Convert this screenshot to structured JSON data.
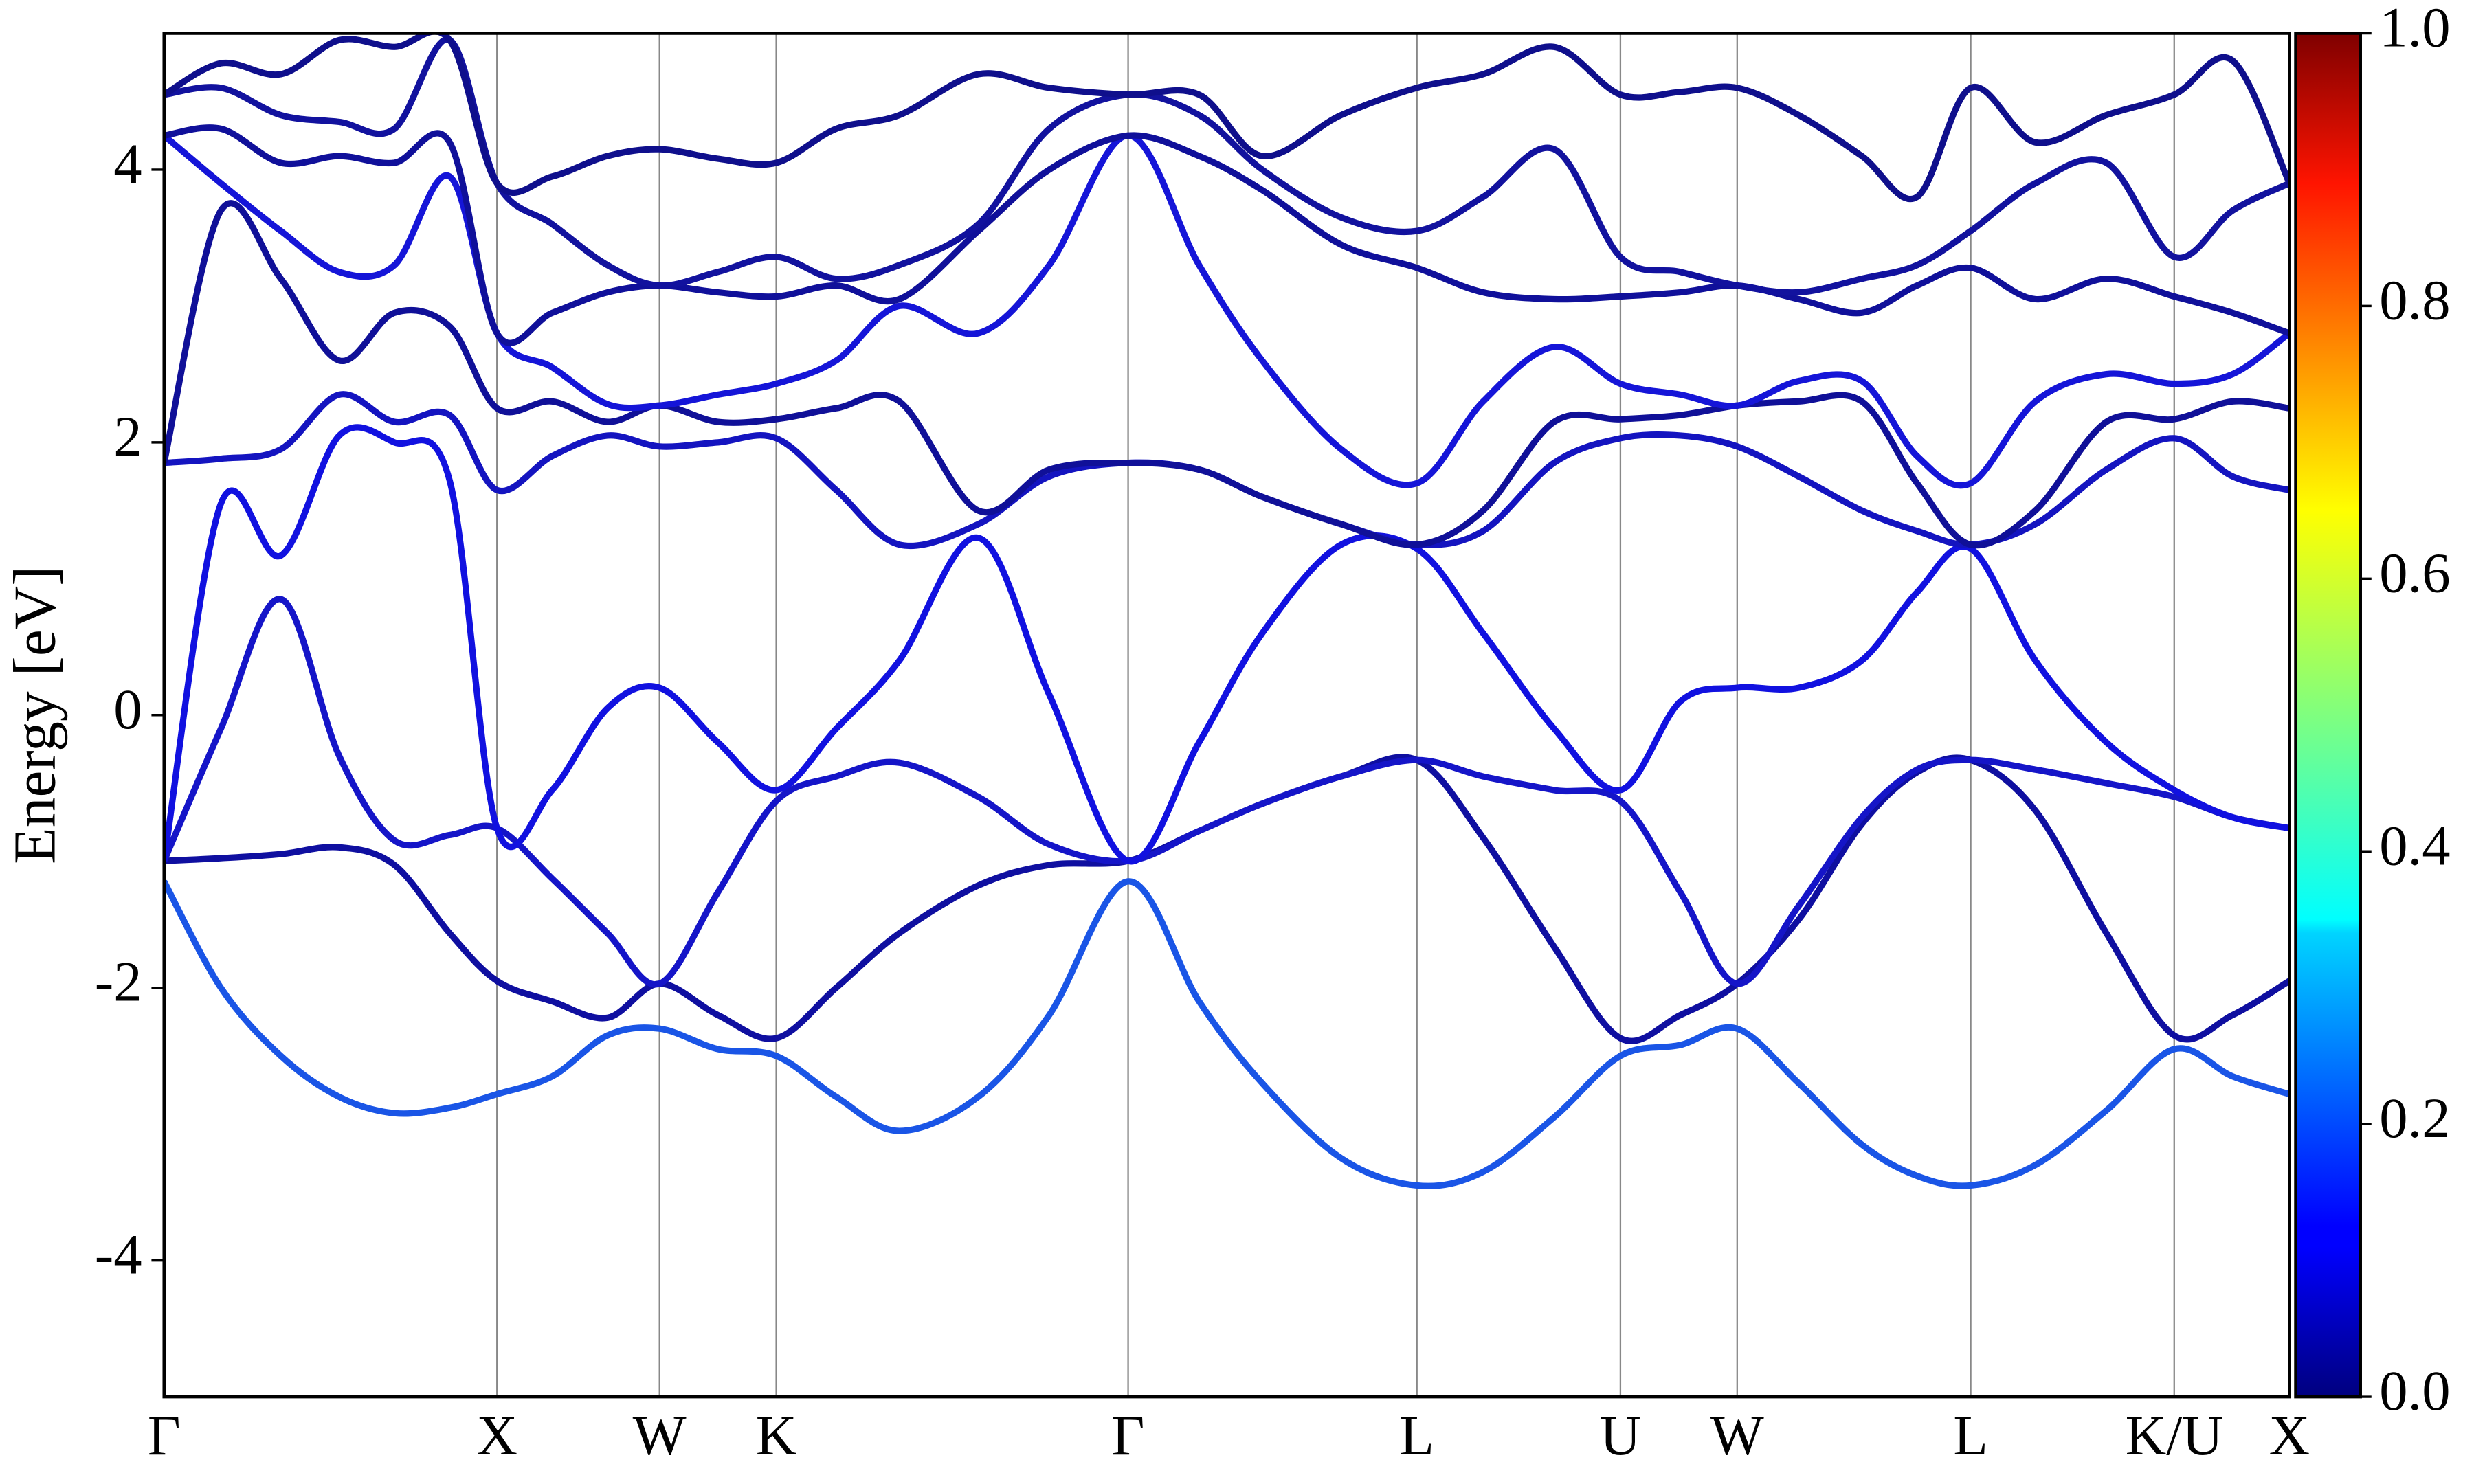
{
  "chart_data": {
    "type": "line",
    "ylabel": "Energy [eV]",
    "ylim": [
      -5,
      5
    ],
    "yticks": [
      -4,
      -2,
      0,
      2,
      4
    ],
    "xlim": [
      0,
      13.47
    ],
    "xticks": [
      {
        "value": 0,
        "label": "Γ"
      },
      {
        "value": 2.11,
        "label": "X"
      },
      {
        "value": 3.14,
        "label": "W"
      },
      {
        "value": 3.88,
        "label": "K"
      },
      {
        "value": 6.11,
        "label": "Γ"
      },
      {
        "value": 7.94,
        "label": "L"
      },
      {
        "value": 9.23,
        "label": "U"
      },
      {
        "value": 9.97,
        "label": "W"
      },
      {
        "value": 11.45,
        "label": "L"
      },
      {
        "value": 12.74,
        "label": "K/U"
      },
      {
        "value": 13.47,
        "label": "X"
      }
    ],
    "grid": "x",
    "x": [
      0,
      0.36,
      0.74,
      1.11,
      1.46,
      1.81,
      2.11,
      2.46,
      2.81,
      3.14,
      3.51,
      3.88,
      4.26,
      4.66,
      5.16,
      5.61,
      6.11,
      6.56,
      6.96,
      7.46,
      7.94,
      8.36,
      8.81,
      9.23,
      9.61,
      9.97,
      10.36,
      10.76,
      11.11,
      11.45,
      11.86,
      12.31,
      12.74,
      13.11,
      13.47
    ],
    "series": [
      {
        "color": "#1a55e6",
        "values": [
          -1.22,
          -2.0,
          -2.5,
          -2.8,
          -2.92,
          -2.88,
          -2.78,
          -2.65,
          -2.35,
          -2.3,
          -2.45,
          -2.5,
          -2.8,
          -3.05,
          -2.8,
          -2.2,
          -1.22,
          -2.1,
          -2.7,
          -3.25,
          -3.45,
          -3.35,
          -2.95,
          -2.5,
          -2.42,
          -2.3,
          -2.7,
          -3.15,
          -3.38,
          -3.45,
          -3.3,
          -2.9,
          -2.45,
          -2.65,
          -2.78
        ]
      },
      {
        "color": "#0f0fa0",
        "values": [
          -1.07,
          -1.05,
          -1.02,
          -0.97,
          -1.1,
          -1.6,
          -1.95,
          -2.1,
          -2.22,
          -1.97,
          -2.2,
          -2.37,
          -2.0,
          -1.6,
          -1.25,
          -1.1,
          -1.07,
          -0.85,
          -0.65,
          -0.45,
          -0.33,
          -0.9,
          -1.7,
          -2.37,
          -2.2,
          -1.97,
          -1.5,
          -0.8,
          -0.42,
          -0.33,
          -0.7,
          -1.6,
          -2.35,
          -2.2,
          -1.95
        ]
      },
      {
        "color": "#1515c8",
        "values": [
          -1.07,
          -0.1,
          0.85,
          -0.3,
          -0.92,
          -0.88,
          -0.83,
          -1.2,
          -1.6,
          -1.97,
          -1.3,
          -0.63,
          -0.45,
          -0.35,
          -0.6,
          -0.95,
          -1.07,
          -0.85,
          -0.65,
          -0.45,
          -0.33,
          -0.45,
          -0.55,
          -0.63,
          -1.3,
          -1.97,
          -1.4,
          -0.75,
          -0.4,
          -0.33,
          -0.4,
          -0.5,
          -0.6,
          -0.75,
          -0.83
        ]
      },
      {
        "color": "#1111e0",
        "values": [
          -1.07,
          1.55,
          1.17,
          2.05,
          2.0,
          1.72,
          -0.83,
          -0.55,
          0.05,
          0.2,
          -0.2,
          -0.55,
          -0.1,
          0.4,
          1.3,
          0.15,
          -1.07,
          -0.2,
          0.6,
          1.25,
          1.22,
          0.6,
          -0.1,
          -0.55,
          0.1,
          0.2,
          0.2,
          0.4,
          0.9,
          1.22,
          0.4,
          -0.2,
          -0.55,
          -0.75,
          -0.83
        ]
      },
      {
        "color": "#1414c0",
        "values": [
          1.85,
          1.88,
          1.95,
          2.35,
          2.15,
          2.2,
          1.65,
          1.9,
          2.05,
          1.97,
          2.0,
          2.03,
          1.65,
          1.25,
          1.4,
          1.75,
          1.85,
          1.8,
          1.6,
          1.4,
          1.25,
          1.35,
          1.85,
          2.03,
          2.05,
          1.97,
          1.75,
          1.5,
          1.35,
          1.25,
          1.4,
          1.8,
          2.03,
          1.75,
          1.65
        ]
      },
      {
        "color": "#101098",
        "values": [
          1.85,
          3.7,
          3.2,
          2.6,
          2.95,
          2.85,
          2.25,
          2.3,
          2.15,
          2.27,
          2.15,
          2.17,
          2.25,
          2.3,
          1.5,
          1.8,
          1.85,
          1.8,
          1.6,
          1.4,
          1.25,
          1.5,
          2.15,
          2.17,
          2.2,
          2.27,
          2.3,
          2.3,
          1.7,
          1.25,
          1.5,
          2.15,
          2.17,
          2.3,
          2.25
        ]
      },
      {
        "color": "#1515d8",
        "values": [
          4.25,
          3.9,
          3.55,
          3.25,
          3.3,
          3.95,
          2.8,
          2.55,
          2.28,
          2.27,
          2.35,
          2.43,
          2.6,
          3.0,
          2.8,
          3.3,
          4.25,
          3.3,
          2.6,
          1.95,
          1.7,
          2.3,
          2.7,
          2.43,
          2.35,
          2.27,
          2.45,
          2.45,
          1.9,
          1.7,
          2.3,
          2.5,
          2.43,
          2.5,
          2.8
        ]
      },
      {
        "color": "#10109a",
        "values": [
          4.25,
          4.3,
          4.05,
          4.1,
          4.05,
          4.2,
          2.8,
          2.95,
          3.1,
          3.15,
          3.1,
          3.07,
          3.15,
          3.05,
          3.55,
          4.0,
          4.25,
          4.1,
          3.85,
          3.45,
          3.28,
          3.1,
          3.05,
          3.07,
          3.1,
          3.15,
          3.05,
          2.95,
          3.15,
          3.28,
          3.05,
          3.2,
          3.07,
          2.95,
          2.8
        ]
      },
      {
        "color": "#12129e",
        "values": [
          4.55,
          4.6,
          4.4,
          4.35,
          4.3,
          4.95,
          3.9,
          3.6,
          3.3,
          3.15,
          3.25,
          3.36,
          3.2,
          3.3,
          3.6,
          4.3,
          4.55,
          4.4,
          4.0,
          3.65,
          3.55,
          3.8,
          4.15,
          3.36,
          3.25,
          3.15,
          3.1,
          3.2,
          3.3,
          3.55,
          3.9,
          4.05,
          3.36,
          3.7,
          3.9
        ]
      },
      {
        "color": "#0f0f8c",
        "values": [
          4.55,
          4.78,
          4.7,
          4.95,
          4.9,
          4.95,
          3.9,
          3.95,
          4.1,
          4.15,
          4.08,
          4.05,
          4.3,
          4.4,
          4.7,
          4.6,
          4.55,
          4.55,
          4.1,
          4.4,
          4.6,
          4.7,
          4.9,
          4.55,
          4.57,
          4.6,
          4.4,
          4.1,
          3.8,
          4.6,
          4.2,
          4.4,
          4.55,
          4.8,
          3.9
        ]
      }
    ],
    "colorbar": {
      "colormap": "jet",
      "lim": [
        0,
        1
      ],
      "ticks": [
        {
          "value": 0,
          "label": "0.0"
        },
        0.2,
        0.4,
        0.6,
        0.8,
        {
          "value": 1,
          "label": "1.0"
        }
      ]
    }
  }
}
